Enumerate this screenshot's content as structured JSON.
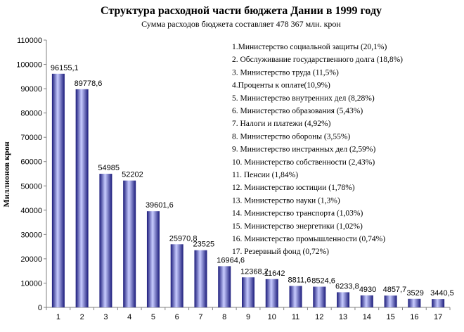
{
  "chart_data": {
    "type": "bar",
    "title": "Структура расходной части бюджета Дании в 1999 году",
    "subtitle": "Сумма расходов бюджета составляет 478 367 млн. крон",
    "ylabel": "Миллионов крон",
    "xlabel": "",
    "ylim": [
      0,
      110000
    ],
    "yticks": [
      0,
      10000,
      20000,
      30000,
      40000,
      50000,
      60000,
      70000,
      80000,
      90000,
      100000,
      110000
    ],
    "categories": [
      "1",
      "2",
      "3",
      "4",
      "5",
      "6",
      "7",
      "8",
      "9",
      "10",
      "11",
      "12",
      "13",
      "14",
      "15",
      "16",
      "17"
    ],
    "values": [
      96155.1,
      89778.6,
      54985,
      52202,
      39601.6,
      25970.8,
      23525,
      16964.6,
      12368.2,
      11642,
      8811.6,
      8524.6,
      6233.8,
      4930,
      4857.7,
      3529,
      3440.5
    ],
    "value_labels": [
      "96155,1",
      "89778,6",
      "54985",
      "52202",
      "39601,6",
      "25970,8",
      "23525",
      "16964,6",
      "12368,2",
      "11642",
      "8811,6",
      "8524,6",
      "6233,8",
      "4930",
      "4857,7",
      "3529",
      "3440,5"
    ],
    "legend_text": [
      "1.Министерство социальной защиты (20,1%)",
      "2. Обслуживание государственного долга (18,8%)",
      "3. Министерство труда (11,5%)",
      "4.Проценты к оплате(10,9%)",
      "5. Министерство внутренних дел (8,28%)",
      "6. Министерство образования (5,43%)",
      "7. Налоги и платежи (4,92%)",
      "8. Министерство обороны (3,55%)",
      "9. Министерство инстранных дел (2,59%)",
      "10. Министерство собственности (2,43%)",
      "11. Пенсии (1,84%)",
      "12. Министерство юстиции (1,78%)",
      "13. Министерство науки (1,3%)",
      "14. Министерство транспорта (1,03%)",
      "15. Министерство энергетики (1,02%)",
      "16. Министерство промышленности (0,74%)",
      "17. Резервный фонд (0,72%)"
    ],
    "grid": false,
    "legend_position": "top-right",
    "colors": {
      "bar_dark": "#1a1a7a",
      "bar_light": "#c8ccff",
      "axis": "#808080"
    }
  }
}
